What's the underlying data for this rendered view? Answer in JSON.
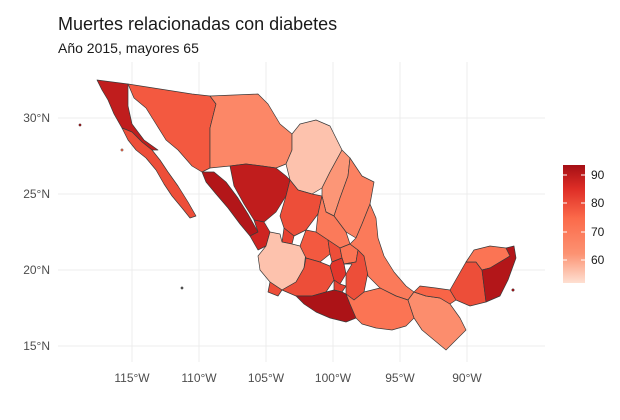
{
  "title": "Muertes relacionadas con diabetes",
  "subtitle": "Año 2015, mayores 65",
  "chart_data": {
    "type": "choropleth",
    "title": "Muertes relacionadas con diabetes",
    "subtitle": "Año 2015, mayores 65",
    "x_ticks": [
      "115°W",
      "110°W",
      "105°W",
      "100°W",
      "95°W",
      "90°W"
    ],
    "x_tick_values": [
      -115,
      -110,
      -105,
      -100,
      -95,
      -90
    ],
    "y_ticks": [
      "30°N",
      "25°N",
      "20°N",
      "15°N"
    ],
    "y_tick_values": [
      30,
      25,
      20,
      15
    ],
    "legend": {
      "placement": "right",
      "ticks": [
        "90",
        "80",
        "70",
        "60"
      ],
      "tick_values": [
        90,
        80,
        70,
        60
      ],
      "range": [
        52,
        94
      ],
      "colors": [
        "#fee0d2",
        "#fc9272",
        "#fb6a4a",
        "#de2d26",
        "#a50f15"
      ]
    },
    "regions": [
      {
        "id": "baja-california",
        "value": 90
      },
      {
        "id": "baja-california-sur",
        "value": 80
      },
      {
        "id": "sonora",
        "value": 78
      },
      {
        "id": "chihuahua",
        "value": 66
      },
      {
        "id": "coahuila",
        "value": 56
      },
      {
        "id": "nuevo-leon",
        "value": 62
      },
      {
        "id": "tamaulipas",
        "value": 68
      },
      {
        "id": "sinaloa",
        "value": 92
      },
      {
        "id": "durango",
        "value": 90
      },
      {
        "id": "zacatecas",
        "value": 80
      },
      {
        "id": "san-luis-potosi",
        "value": 70
      },
      {
        "id": "nayarit",
        "value": 88
      },
      {
        "id": "aguascalientes",
        "value": 82
      },
      {
        "id": "jalisco",
        "value": 56
      },
      {
        "id": "guanajuato",
        "value": 78
      },
      {
        "id": "queretaro",
        "value": 80
      },
      {
        "id": "hidalgo",
        "value": 72
      },
      {
        "id": "colima",
        "value": 80
      },
      {
        "id": "michoacan",
        "value": 80
      },
      {
        "id": "mexico",
        "value": 84
      },
      {
        "id": "morelos",
        "value": 82
      },
      {
        "id": "puebla",
        "value": 80
      },
      {
        "id": "tlaxcala",
        "value": 86
      },
      {
        "id": "veracruz",
        "value": 70
      },
      {
        "id": "guerrero",
        "value": 93
      },
      {
        "id": "oaxaca",
        "value": 72
      },
      {
        "id": "chiapas",
        "value": 64
      },
      {
        "id": "tabasco",
        "value": 76
      },
      {
        "id": "campeche",
        "value": 80
      },
      {
        "id": "yucatan",
        "value": 72
      },
      {
        "id": "quintana-roo",
        "value": 92
      }
    ]
  }
}
